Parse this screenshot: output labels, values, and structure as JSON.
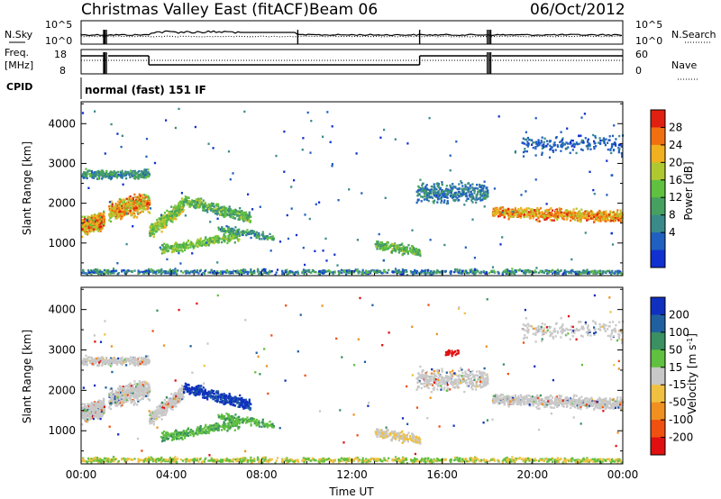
{
  "header": {
    "station": "Christmas Valley East (fitACF)",
    "beam": "Beam 06",
    "date": "06/Oct/2012"
  },
  "aux_panels": {
    "nsky_label": "N.Sky",
    "nsearch_label": "N.Search",
    "noise_ticks_left": [
      "10^5",
      "10^0"
    ],
    "noise_ticks_right": [
      "10^5",
      "10^0"
    ],
    "freq_label_1": "Freq.",
    "freq_label_2": "[MHz]",
    "freq_ticks": [
      "18",
      "8"
    ],
    "nave_label": "Nave",
    "nave_ticks": [
      "60",
      "0"
    ],
    "cpid_label": "CPID",
    "cpid_text": "normal (fast) 151 IF"
  },
  "chart_data": [
    {
      "type": "heatmap",
      "panel": "power",
      "ylabel": "Slant Range [km]",
      "ylim": [
        180,
        4550
      ],
      "yticks": [
        1000,
        2000,
        3000,
        4000
      ],
      "xlim": [
        0,
        24
      ],
      "colorbar": {
        "label": "Power [dB]",
        "ticks": [
          "4",
          "8",
          "12",
          "16",
          "20",
          "24",
          "28"
        ],
        "colors": [
          "#1030d0",
          "#2060c0",
          "#3a8a8a",
          "#46a060",
          "#60c040",
          "#b0c830",
          "#f0b020",
          "#f07010",
          "#e02010"
        ]
      }
    },
    {
      "type": "heatmap",
      "panel": "velocity",
      "ylabel": "Slant Range [km]",
      "ylim": [
        180,
        4550
      ],
      "yticks": [
        1000,
        2000,
        3000,
        4000
      ],
      "xlim": [
        0,
        24
      ],
      "colorbar": {
        "label": "Velocity [m s",
        "label_sup": "-1",
        "label_end": "]",
        "ticks": [
          "200",
          "100",
          "50",
          "15",
          "-15",
          "-50",
          "-100",
          "-200"
        ],
        "colors": [
          "#1030c0",
          "#2060a0",
          "#3a9060",
          "#60c040",
          "#c8c8c8",
          "#f0c040",
          "#f09020",
          "#f05010",
          "#e01010"
        ]
      }
    }
  ],
  "x_axis": {
    "ticks": [
      "00:00",
      "04:00",
      "08:00",
      "12:00",
      "16:00",
      "20:00",
      "00:00"
    ],
    "label": "Time UT"
  }
}
